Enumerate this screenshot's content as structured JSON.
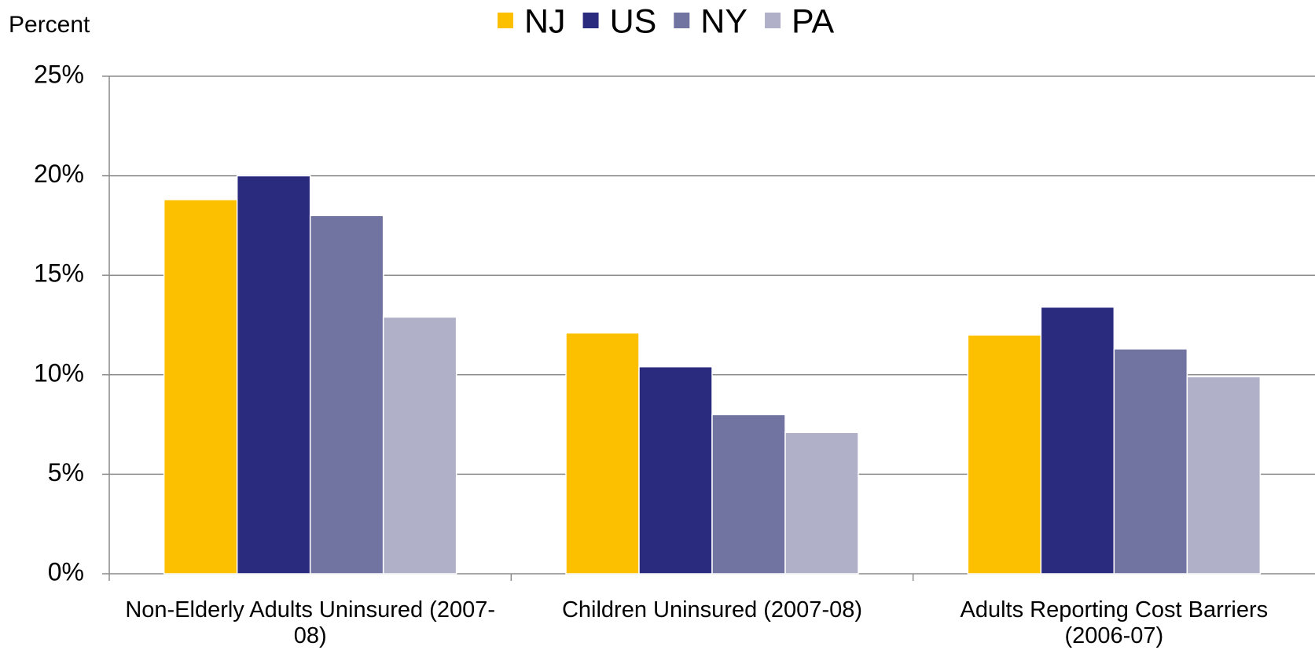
{
  "chart_data": {
    "type": "bar",
    "y_label": "Percent",
    "categories": [
      "Non-Elderly Adults Uninsured (2007-08)",
      "Children Uninsured (2007-08)",
      "Adults Reporting Cost Barriers (2006-07)"
    ],
    "series": [
      {
        "name": "NJ",
        "color": "#fcc000",
        "values": [
          18.8,
          12.1,
          12.0
        ]
      },
      {
        "name": "US",
        "color": "#2a2a7e",
        "values": [
          20.0,
          10.4,
          13.4
        ]
      },
      {
        "name": "NY",
        "color": "#7173a1",
        "values": [
          18.0,
          8.0,
          11.3
        ]
      },
      {
        "name": "PA",
        "color": "#b0b1c8",
        "values": [
          12.9,
          7.1,
          9.9
        ]
      }
    ],
    "ylim": [
      0,
      25
    ],
    "yticks": [
      {
        "value": 0,
        "label": "0%"
      },
      {
        "value": 5,
        "label": "5%"
      },
      {
        "value": 10,
        "label": "10%"
      },
      {
        "value": 15,
        "label": "15%"
      },
      {
        "value": 20,
        "label": "20%"
      },
      {
        "value": 25,
        "label": "25%"
      }
    ],
    "grid": true,
    "legend": "top"
  }
}
